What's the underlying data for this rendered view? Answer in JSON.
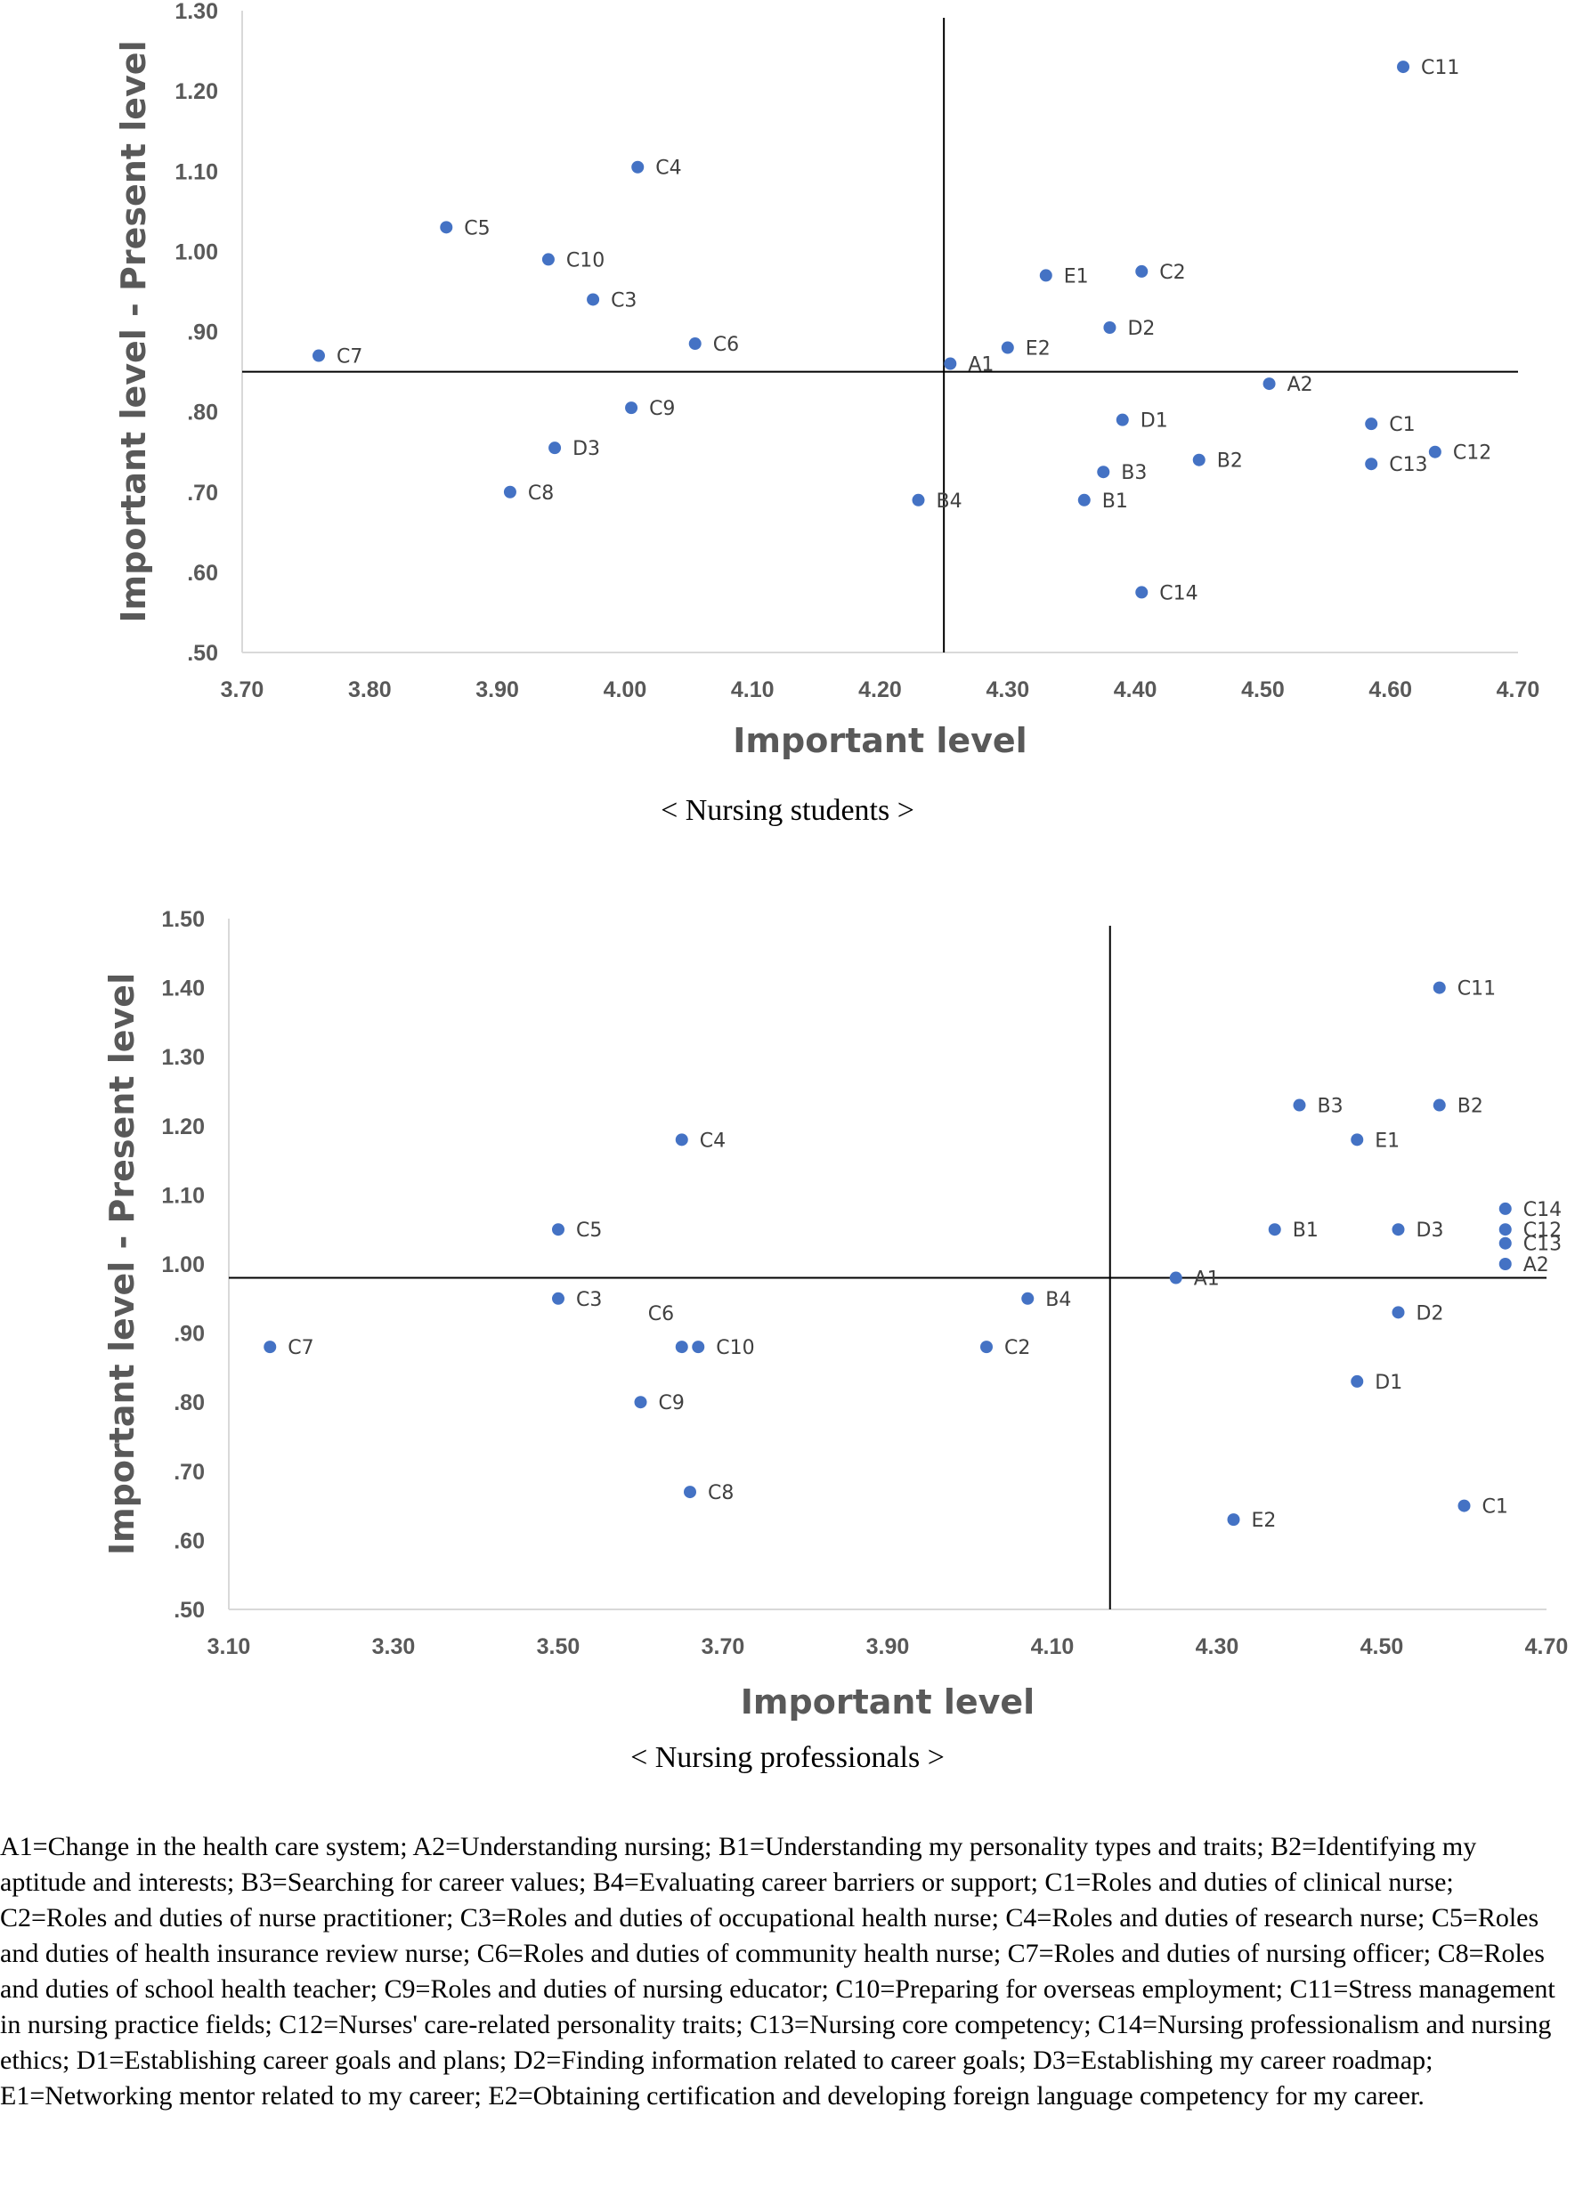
{
  "chart_data": [
    {
      "type": "scatter",
      "caption": "< Nursing  students >",
      "xlabel": "Important level",
      "ylabel": "Important level - Present level",
      "xlim": [
        3.7,
        4.7
      ],
      "ylim": [
        0.5,
        1.3
      ],
      "xticks": [
        "3.70",
        "3.80",
        "3.90",
        "4.00",
        "4.10",
        "4.20",
        "4.30",
        "4.40",
        "4.50",
        "4.60",
        "4.70"
      ],
      "yticks": [
        "1.30",
        "1.20",
        "1.10",
        "1.00",
        ".90",
        ".80",
        ".70",
        ".60",
        ".50"
      ],
      "reference_lines": {
        "x": 4.25,
        "y": 0.85
      },
      "point_color": "#4472C4",
      "points": [
        {
          "label": "C11",
          "x": 4.61,
          "y": 1.23
        },
        {
          "label": "C4",
          "x": 4.01,
          "y": 1.105
        },
        {
          "label": "C5",
          "x": 3.86,
          "y": 1.03
        },
        {
          "label": "C10",
          "x": 3.94,
          "y": 0.99
        },
        {
          "label": "C3",
          "x": 3.975,
          "y": 0.94
        },
        {
          "label": "C6",
          "x": 4.055,
          "y": 0.885
        },
        {
          "label": "C7",
          "x": 3.76,
          "y": 0.87
        },
        {
          "label": "E1",
          "x": 4.33,
          "y": 0.97
        },
        {
          "label": "C2",
          "x": 4.405,
          "y": 0.975
        },
        {
          "label": "D2",
          "x": 4.38,
          "y": 0.905
        },
        {
          "label": "E2",
          "x": 4.3,
          "y": 0.88
        },
        {
          "label": "A1",
          "x": 4.255,
          "y": 0.86
        },
        {
          "label": "A2",
          "x": 4.505,
          "y": 0.835
        },
        {
          "label": "C9",
          "x": 4.005,
          "y": 0.805
        },
        {
          "label": "D1",
          "x": 4.39,
          "y": 0.79
        },
        {
          "label": "C1",
          "x": 4.585,
          "y": 0.785
        },
        {
          "label": "C12",
          "x": 4.635,
          "y": 0.75
        },
        {
          "label": "D3",
          "x": 3.945,
          "y": 0.755
        },
        {
          "label": "B2",
          "x": 4.45,
          "y": 0.74
        },
        {
          "label": "C13",
          "x": 4.585,
          "y": 0.735
        },
        {
          "label": "B3",
          "x": 4.375,
          "y": 0.725
        },
        {
          "label": "C8",
          "x": 3.91,
          "y": 0.7
        },
        {
          "label": "B4",
          "x": 4.23,
          "y": 0.69
        },
        {
          "label": "B1",
          "x": 4.36,
          "y": 0.69
        },
        {
          "label": "C14",
          "x": 4.405,
          "y": 0.575
        }
      ]
    },
    {
      "type": "scatter",
      "caption": "< Nursing  professionals >",
      "xlabel": "Important level",
      "ylabel": "Important level - Present level",
      "xlim": [
        3.1,
        4.7
      ],
      "ylim": [
        0.5,
        1.5
      ],
      "xticks": [
        "3.10",
        "3.30",
        "3.50",
        "3.70",
        "3.90",
        "4.10",
        "4.30",
        "4.50",
        "4.70"
      ],
      "yticks": [
        "1.50",
        "1.40",
        "1.30",
        "1.20",
        "1.10",
        "1.00",
        ".90",
        ".80",
        ".70",
        ".60",
        ".50"
      ],
      "reference_lines": {
        "x": 4.17,
        "y": 0.98
      },
      "point_color": "#4472C4",
      "points": [
        {
          "label": "C11",
          "x": 4.57,
          "y": 1.4
        },
        {
          "label": "B3",
          "x": 4.4,
          "y": 1.23
        },
        {
          "label": "B2",
          "x": 4.57,
          "y": 1.23
        },
        {
          "label": "C4",
          "x": 3.65,
          "y": 1.18
        },
        {
          "label": "E1",
          "x": 4.47,
          "y": 1.18
        },
        {
          "label": "C14",
          "x": 4.65,
          "y": 1.08
        },
        {
          "label": "C5",
          "x": 3.5,
          "y": 1.05
        },
        {
          "label": "B1",
          "x": 4.37,
          "y": 1.05
        },
        {
          "label": "D3",
          "x": 4.52,
          "y": 1.05
        },
        {
          "label": "C12",
          "x": 4.65,
          "y": 1.05
        },
        {
          "label": "C13",
          "x": 4.65,
          "y": 1.03
        },
        {
          "label": "A2",
          "x": 4.65,
          "y": 1.0
        },
        {
          "label": "A1",
          "x": 4.25,
          "y": 0.98
        },
        {
          "label": "C3",
          "x": 3.5,
          "y": 0.95
        },
        {
          "label": "B4",
          "x": 4.07,
          "y": 0.95
        },
        {
          "label": "D2",
          "x": 4.52,
          "y": 0.93
        },
        {
          "label": "C7",
          "x": 3.15,
          "y": 0.88
        },
        {
          "label": "C6",
          "x": 3.65,
          "y": 0.88
        },
        {
          "label": "C10",
          "x": 3.67,
          "y": 0.88
        },
        {
          "label": "C2",
          "x": 4.02,
          "y": 0.88
        },
        {
          "label": "D1",
          "x": 4.47,
          "y": 0.83
        },
        {
          "label": "C9",
          "x": 3.6,
          "y": 0.8
        },
        {
          "label": "C8",
          "x": 3.66,
          "y": 0.67
        },
        {
          "label": "C1",
          "x": 4.6,
          "y": 0.65
        },
        {
          "label": "E2",
          "x": 4.32,
          "y": 0.63
        }
      ]
    }
  ],
  "legend_text": "A1=Change in the health care system; A2=Understanding nursing; B1=Understanding my personality types and traits; B2=Identifying my aptitude and interests; B3=Searching for career values; B4=Evaluating career barriers or support; C1=Roles and duties of clinical nurse; C2=Roles and duties of nurse practitioner; C3=Roles and duties of occupational health nurse; C4=Roles and duties of research nurse; C5=Roles and duties of health insurance review nurse; C6=Roles and duties of community health nurse; C7=Roles and duties of nursing officer; C8=Roles and duties of school health teacher; C9=Roles and duties of nursing educator; C10=Preparing for overseas employment; C11=Stress management in nursing practice fields; C12=Nurses' care-related personality traits; C13=Nursing core competency; C14=Nursing professionalism and nursing ethics; D1=Establishing career goals and plans; D2=Finding information related to career goals; D3=Establishing my career roadmap; E1=Networking mentor related to my career; E2=Obtaining certification and developing foreign language competency for my career."
}
